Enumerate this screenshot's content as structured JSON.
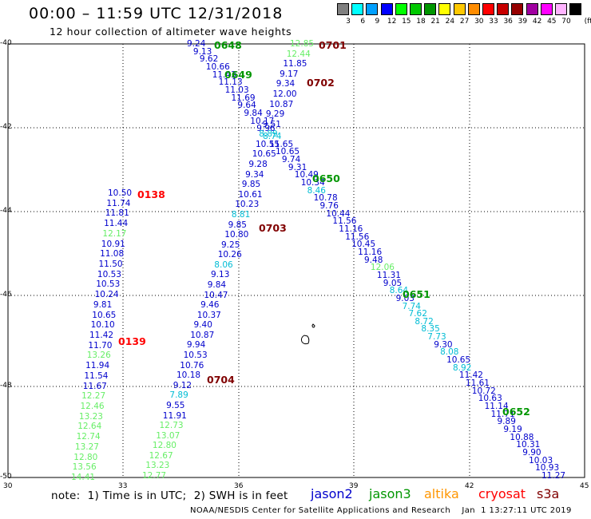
{
  "header": {
    "title": "00:00 – 11:59 UTC 12/31/2018",
    "subtitle": "12 hour collection of altimeter wave heights"
  },
  "legend_scale": {
    "unit_label": "(ft)",
    "bins": [
      {
        "label": "3",
        "color": "#808080"
      },
      {
        "label": "6",
        "color": "#00ffff"
      },
      {
        "label": "9",
        "color": "#00a0ff"
      },
      {
        "label": "12",
        "color": "#0000ff"
      },
      {
        "label": "15",
        "color": "#00ff00"
      },
      {
        "label": "18",
        "color": "#00c800"
      },
      {
        "label": "21",
        "color": "#009600"
      },
      {
        "label": "24",
        "color": "#ffff00"
      },
      {
        "label": "27",
        "color": "#ffc800"
      },
      {
        "label": "30",
        "color": "#ff8c00"
      },
      {
        "label": "33",
        "color": "#ff0000"
      },
      {
        "label": "36",
        "color": "#c80000"
      },
      {
        "label": "39",
        "color": "#960000"
      },
      {
        "label": "42",
        "color": "#a000a0"
      },
      {
        "label": "45",
        "color": "#ff00ff"
      },
      {
        "label": "70",
        "color": "#ffb4ff"
      },
      {
        "label": "",
        "color": "#000000"
      }
    ]
  },
  "axes": {
    "lat_labels": [
      "-40",
      "-42",
      "-44",
      "-46",
      "-48",
      "-50"
    ],
    "lon_labels": [
      "30",
      "33",
      "36",
      "39",
      "42",
      "45"
    ]
  },
  "satellite_colors": {
    "jason2": "#0000cc",
    "jason3": "#009600",
    "altika": "#ff9600",
    "cryosat": "#ff0000",
    "s3a": "#800000",
    "low": "#00bcd4",
    "high": "#66ee66"
  },
  "orbit_labels": [
    {
      "text": "0648",
      "sat": "jason3"
    },
    {
      "text": "0649",
      "sat": "jason3"
    },
    {
      "text": "0701",
      "sat": "s3a"
    },
    {
      "text": "0702",
      "sat": "s3a"
    },
    {
      "text": "0650",
      "sat": "jason3"
    },
    {
      "text": "0138",
      "sat": "cryosat"
    },
    {
      "text": "0703",
      "sat": "s3a"
    },
    {
      "text": "0651",
      "sat": "jason3"
    },
    {
      "text": "0139",
      "sat": "cryosat"
    },
    {
      "text": "0704",
      "sat": "s3a"
    },
    {
      "text": "0652",
      "sat": "jason3"
    }
  ],
  "tracks": [
    {
      "name": "jason3-0648-0649",
      "values": [
        {
          "v": "9.24",
          "c": "jason2"
        },
        {
          "v": "9.13",
          "c": "jason2"
        },
        {
          "v": "9.62",
          "c": "jason2"
        },
        {
          "v": "10.66",
          "c": "jason2"
        },
        {
          "v": "11.43",
          "c": "jason2"
        },
        {
          "v": "11.13",
          "c": "jason2"
        },
        {
          "v": "11.03",
          "c": "jason2"
        },
        {
          "v": "11.69",
          "c": "jason2"
        },
        {
          "v": "9.64",
          "c": "jason2"
        },
        {
          "v": "9.84",
          "c": "jason2"
        },
        {
          "v": "10.17",
          "c": "jason2"
        },
        {
          "v": "9.96",
          "c": "jason2"
        },
        {
          "v": "8.74",
          "c": "low"
        },
        {
          "v": "11.65",
          "c": "jason2"
        },
        {
          "v": "10.65",
          "c": "jason2"
        },
        {
          "v": "9.74",
          "c": "jason2"
        },
        {
          "v": "9.31",
          "c": "jason2"
        },
        {
          "v": "10.49",
          "c": "jason2"
        },
        {
          "v": "10.34",
          "c": "jason2"
        },
        {
          "v": "8.46",
          "c": "low"
        },
        {
          "v": "10.78",
          "c": "jason2"
        },
        {
          "v": "9.76",
          "c": "jason2"
        },
        {
          "v": "10.44",
          "c": "jason2"
        },
        {
          "v": "11.56",
          "c": "jason2"
        },
        {
          "v": "11.16",
          "c": "jason2"
        },
        {
          "v": "11.56",
          "c": "jason2"
        },
        {
          "v": "10.45",
          "c": "jason2"
        },
        {
          "v": "11.16",
          "c": "jason2"
        },
        {
          "v": "9.48",
          "c": "jason2"
        },
        {
          "v": "12.06",
          "c": "high"
        },
        {
          "v": "11.31",
          "c": "jason2"
        },
        {
          "v": "9.05",
          "c": "jason2"
        },
        {
          "v": "8.64",
          "c": "low"
        },
        {
          "v": "9.03",
          "c": "jason2"
        },
        {
          "v": "7.74",
          "c": "low"
        },
        {
          "v": "7.62",
          "c": "low"
        },
        {
          "v": "8.72",
          "c": "low"
        },
        {
          "v": "8.35",
          "c": "low"
        },
        {
          "v": "7.73",
          "c": "low"
        },
        {
          "v": "9.30",
          "c": "jason2"
        },
        {
          "v": "8.08",
          "c": "low"
        },
        {
          "v": "10.65",
          "c": "jason2"
        },
        {
          "v": "8.92",
          "c": "low"
        },
        {
          "v": "11.42",
          "c": "jason2"
        },
        {
          "v": "11.61",
          "c": "jason2"
        },
        {
          "v": "10.72",
          "c": "jason2"
        },
        {
          "v": "10.63",
          "c": "jason2"
        },
        {
          "v": "11.14",
          "c": "jason2"
        },
        {
          "v": "11.71",
          "c": "jason2"
        },
        {
          "v": "9.89",
          "c": "jason2"
        },
        {
          "v": "9.19",
          "c": "jason2"
        },
        {
          "v": "10.88",
          "c": "jason2"
        },
        {
          "v": "10.31",
          "c": "jason2"
        },
        {
          "v": "9.90",
          "c": "jason2"
        },
        {
          "v": "10.03",
          "c": "jason2"
        },
        {
          "v": "10.93",
          "c": "jason2"
        },
        {
          "v": "11.27",
          "c": "jason2"
        }
      ]
    },
    {
      "name": "s3a-0701-0703",
      "values": [
        {
          "v": "12.85",
          "c": "high"
        },
        {
          "v": "12.44",
          "c": "high"
        },
        {
          "v": "11.85",
          "c": "jason2"
        },
        {
          "v": "9.17",
          "c": "jason2"
        },
        {
          "v": "9.34",
          "c": "jason2"
        },
        {
          "v": "12.00",
          "c": "jason2"
        },
        {
          "v": "10.87",
          "c": "jason2"
        },
        {
          "v": "9.29",
          "c": "jason2"
        },
        {
          "v": "9.51",
          "c": "jason2"
        },
        {
          "v": "8.89",
          "c": "low"
        },
        {
          "v": "10.55",
          "c": "jason2"
        },
        {
          "v": "10.65",
          "c": "jason2"
        },
        {
          "v": "9.28",
          "c": "jason2"
        },
        {
          "v": "9.34",
          "c": "jason2"
        },
        {
          "v": "9.85",
          "c": "jason2"
        },
        {
          "v": "10.61",
          "c": "jason2"
        },
        {
          "v": "10.23",
          "c": "jason2"
        },
        {
          "v": "8.81",
          "c": "low"
        },
        {
          "v": "9.85",
          "c": "jason2"
        },
        {
          "v": "10.80",
          "c": "jason2"
        },
        {
          "v": "9.25",
          "c": "jason2"
        },
        {
          "v": "10.26",
          "c": "jason2"
        },
        {
          "v": "8.06",
          "c": "low"
        },
        {
          "v": "9.13",
          "c": "jason2"
        },
        {
          "v": "9.84",
          "c": "jason2"
        },
        {
          "v": "10.47",
          "c": "jason2"
        },
        {
          "v": "9.46",
          "c": "jason2"
        },
        {
          "v": "10.37",
          "c": "jason2"
        },
        {
          "v": "9.40",
          "c": "jason2"
        },
        {
          "v": "10.87",
          "c": "jason2"
        },
        {
          "v": "9.94",
          "c": "jason2"
        },
        {
          "v": "10.53",
          "c": "jason2"
        },
        {
          "v": "10.76",
          "c": "jason2"
        },
        {
          "v": "10.18",
          "c": "jason2"
        },
        {
          "v": "9.12",
          "c": "jason2"
        },
        {
          "v": "7.89",
          "c": "low"
        },
        {
          "v": "9.55",
          "c": "jason2"
        },
        {
          "v": "11.91",
          "c": "jason2"
        },
        {
          "v": "12.73",
          "c": "high"
        },
        {
          "v": "13.07",
          "c": "high"
        },
        {
          "v": "12.80",
          "c": "high"
        },
        {
          "v": "12.67",
          "c": "high"
        },
        {
          "v": "13.23",
          "c": "high"
        },
        {
          "v": "12.77",
          "c": "high"
        }
      ]
    },
    {
      "name": "cryosat-0138-0139",
      "values": [
        {
          "v": "10.50",
          "c": "jason2"
        },
        {
          "v": "11.74",
          "c": "jason2"
        },
        {
          "v": "11.81",
          "c": "jason2"
        },
        {
          "v": "11.44",
          "c": "jason2"
        },
        {
          "v": "12.17",
          "c": "high"
        },
        {
          "v": "10.91",
          "c": "jason2"
        },
        {
          "v": "11.08",
          "c": "jason2"
        },
        {
          "v": "11.50",
          "c": "jason2"
        },
        {
          "v": "10.53",
          "c": "jason2"
        },
        {
          "v": "10.53",
          "c": "jason2"
        },
        {
          "v": "10.24",
          "c": "jason2"
        },
        {
          "v": "9.81",
          "c": "jason2"
        },
        {
          "v": "10.65",
          "c": "jason2"
        },
        {
          "v": "10.10",
          "c": "jason2"
        },
        {
          "v": "11.42",
          "c": "jason2"
        },
        {
          "v": "11.70",
          "c": "jason2"
        },
        {
          "v": "13.26",
          "c": "high"
        },
        {
          "v": "11.94",
          "c": "jason2"
        },
        {
          "v": "11.54",
          "c": "jason2"
        },
        {
          "v": "11.67",
          "c": "jason2"
        },
        {
          "v": "12.27",
          "c": "high"
        },
        {
          "v": "12.46",
          "c": "high"
        },
        {
          "v": "13.23",
          "c": "high"
        },
        {
          "v": "12.64",
          "c": "high"
        },
        {
          "v": "12.74",
          "c": "high"
        },
        {
          "v": "13.27",
          "c": "high"
        },
        {
          "v": "12.80",
          "c": "high"
        },
        {
          "v": "13.56",
          "c": "high"
        },
        {
          "v": "14.41",
          "c": "high"
        }
      ]
    }
  ],
  "note": "note:  1) Time is in UTC;  2) SWH is in feet",
  "satellite_legend": [
    {
      "label": "jason2",
      "sat": "jason2"
    },
    {
      "label": "jason3",
      "sat": "jason3"
    },
    {
      "label": "altika",
      "sat": "altika"
    },
    {
      "label": "cryosat",
      "sat": "cryosat"
    },
    {
      "label": "s3a",
      "sat": "s3a"
    }
  ],
  "credit": "NOAA/NESDIS Center for Satellite Applications and Research    Jan  1 13:27:11 UTC 2019"
}
